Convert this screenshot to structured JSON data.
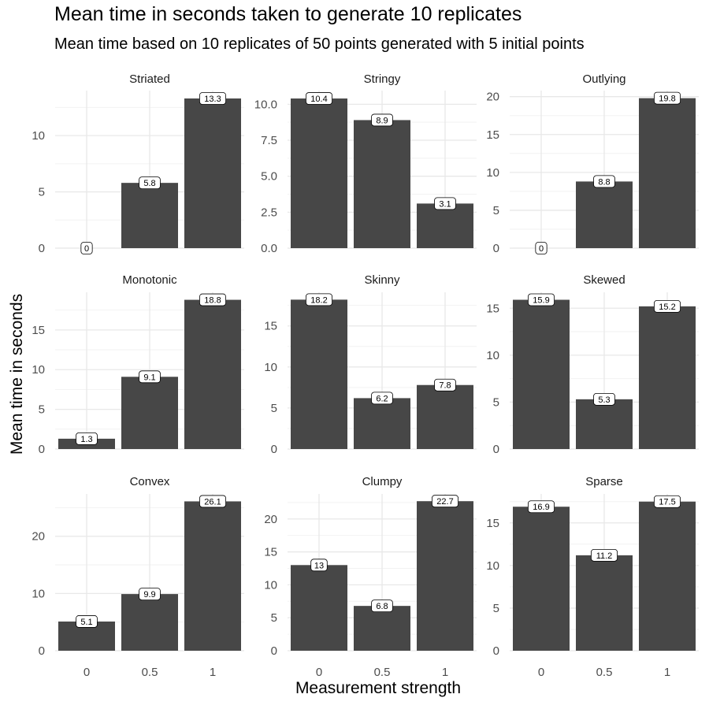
{
  "chart_data": {
    "type": "bar",
    "title": "Mean time in seconds taken to generate 10 replicates",
    "subtitle": "Mean time  based on 10 replicates of 50 points generated with 5 initial points",
    "xlabel": "Measurement strength",
    "ylabel": "Mean time in seconds",
    "categories": [
      "0",
      "0.5",
      "1"
    ],
    "bar_color": "#474747",
    "grid": true,
    "facets": [
      {
        "name": "Striated",
        "values": [
          0,
          5.8,
          13.3
        ],
        "labels": [
          "0",
          "5.8",
          "13.3"
        ],
        "ymax": 14,
        "yticks": [
          0,
          5,
          10
        ],
        "yticklabels": [
          "0",
          "5",
          "10"
        ]
      },
      {
        "name": "Stringy",
        "values": [
          10.4,
          8.9,
          3.1
        ],
        "labels": [
          "10.4",
          "8.9",
          "3.1"
        ],
        "ymax": 10.95,
        "yticks": [
          0,
          2.5,
          5,
          7.5,
          10
        ],
        "yticklabels": [
          "0.0",
          "2.5",
          "5.0",
          "7.5",
          "10.0"
        ]
      },
      {
        "name": "Outlying",
        "values": [
          0,
          8.8,
          19.8
        ],
        "labels": [
          "0",
          "8.8",
          "19.8"
        ],
        "ymax": 20.8,
        "yticks": [
          0,
          5,
          10,
          15,
          20
        ],
        "yticklabels": [
          "0",
          "5",
          "10",
          "15",
          "20"
        ]
      },
      {
        "name": "Monotonic",
        "values": [
          1.3,
          9.1,
          18.8
        ],
        "labels": [
          "1.3",
          "9.1",
          "18.8"
        ],
        "ymax": 19.75,
        "yticks": [
          0,
          5,
          10,
          15
        ],
        "yticklabels": [
          "0",
          "5",
          "10",
          "15"
        ]
      },
      {
        "name": "Skinny",
        "values": [
          18.2,
          6.2,
          7.8
        ],
        "labels": [
          "18.2",
          "6.2",
          "7.8"
        ],
        "ymax": 19.1,
        "yticks": [
          0,
          5,
          10,
          15
        ],
        "yticklabels": [
          "0",
          "5",
          "10",
          "15"
        ]
      },
      {
        "name": "Skewed",
        "values": [
          15.9,
          5.3,
          15.2
        ],
        "labels": [
          "15.9",
          "5.3",
          "15.2"
        ],
        "ymax": 16.7,
        "yticks": [
          0,
          5,
          10,
          15
        ],
        "yticklabels": [
          "0",
          "5",
          "10",
          "15"
        ]
      },
      {
        "name": "Convex",
        "values": [
          5.1,
          9.9,
          26.1
        ],
        "labels": [
          "5.1",
          "9.9",
          "26.1"
        ],
        "ymax": 27.4,
        "yticks": [
          0,
          10,
          20
        ],
        "yticklabels": [
          "0",
          "10",
          "20"
        ]
      },
      {
        "name": "Clumpy",
        "values": [
          13,
          6.8,
          22.7
        ],
        "labels": [
          "13",
          "6.8",
          "22.7"
        ],
        "ymax": 23.8,
        "yticks": [
          0,
          5,
          10,
          15,
          20
        ],
        "yticklabels": [
          "0",
          "5",
          "10",
          "15",
          "20"
        ]
      },
      {
        "name": "Sparse",
        "values": [
          16.9,
          11.2,
          17.5
        ],
        "labels": [
          "16.9",
          "11.2",
          "17.5"
        ],
        "ymax": 18.4,
        "yticks": [
          0,
          5,
          10,
          15
        ],
        "yticklabels": [
          "0",
          "5",
          "10",
          "15"
        ]
      }
    ]
  }
}
